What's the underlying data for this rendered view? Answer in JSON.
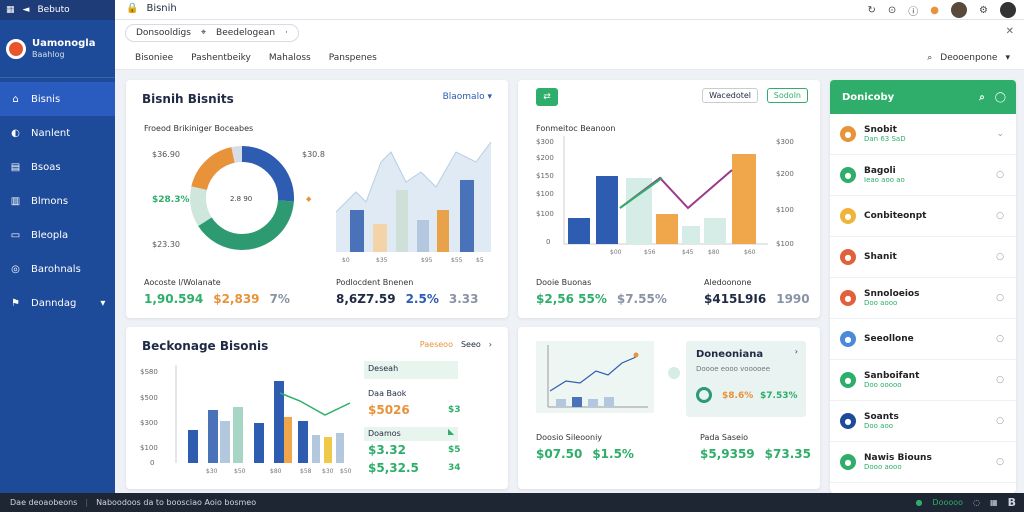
{
  "chrome": {
    "app_name": "Bebuto",
    "url_title": "Bisnih"
  },
  "sidebar": {
    "brand_name": "Uamonogla",
    "brand_sub": "Baahlog",
    "items": [
      {
        "label": "Bisnis",
        "icon": "home-icon"
      },
      {
        "label": "Nanlent",
        "icon": "gauge-icon"
      },
      {
        "label": "Bsoas",
        "icon": "chart-icon"
      },
      {
        "label": "Blmons",
        "icon": "list-icon"
      },
      {
        "label": "Bleopla",
        "icon": "doc-icon"
      },
      {
        "label": "Barohnals",
        "icon": "settings-icon"
      },
      {
        "label": "Danndag",
        "icon": "flag-icon"
      }
    ]
  },
  "topbar": {
    "pill_a": "Donsooldigs",
    "pill_b": "Beedelogean"
  },
  "subnav": {
    "items": [
      "Bisoniee",
      "Pashentbeiky",
      "Mahaloss",
      "Panspenes"
    ],
    "right_label": "Deooenpone"
  },
  "card1": {
    "title": "Bisnih Bisnits",
    "dropdown": "Blaomalo",
    "subtitle": "Froeod Brikiniger Boceabes",
    "donut_labels": [
      "$36.90",
      "$28.3%",
      "$23.30",
      "$30.8"
    ],
    "donut_center": "2.8 90",
    "foot_left_label": "Aocoste l/Wolanate",
    "foot_left_values": [
      "1,90.594",
      "$2,839",
      "7%"
    ],
    "foot_right_label": "Podlocdent Bnenen",
    "foot_right_values": [
      "8,6Z7.59",
      "2.5%",
      "3.33"
    ]
  },
  "card2": {
    "btn_a": "Wacedotel",
    "btn_b": "Sodoln",
    "chart_title": "Fonmeitoc Beanoon",
    "y_left": [
      "$300",
      "$200",
      "$150",
      "$100",
      "$100",
      "0"
    ],
    "y_right": [
      "$300",
      "$200",
      "$100",
      "$100",
      "$300"
    ],
    "x_labels": [
      "$00",
      "$56",
      "$45",
      "$80",
      "$60"
    ],
    "foot_left_label": "Dooie Buonas",
    "foot_left_values": [
      "$2,56 55%",
      "$7.55%"
    ],
    "foot_right_label": "Aledoonone",
    "foot_right_values": [
      "$415L9I6",
      "1990"
    ]
  },
  "card3": {
    "title": "Beckonage Bisonis",
    "link": "Paeseoo",
    "link2": "Seeo",
    "y_labels": [
      "$S80",
      "$500",
      "$300",
      "$100",
      "0"
    ],
    "x_labels": [
      "$30",
      "$50",
      "$80",
      "$58",
      "$30",
      "$50"
    ],
    "side_label1": "Deseah",
    "side_label2": "Daa Baok",
    "side_val1": "$5026",
    "side_val1b": "$3",
    "side_label3": "Doamos",
    "side_val2": "$3.32",
    "side_val2b": "$5",
    "side_val3": "$5,32.5",
    "side_val3b": "34"
  },
  "card4": {
    "kpi_title": "Doneoniana",
    "kpi_sub": "Doooe eooo vooooee",
    "kpi_values": [
      "$8.6%",
      "$7.53%"
    ],
    "foot_left_label": "Doosio Sileooniy",
    "foot_left_values": [
      "$07.50",
      "$1.5%"
    ],
    "foot_right_label": "Pada Saseio",
    "foot_right_values": [
      "$5,9359",
      "$73.35"
    ]
  },
  "right_panel": {
    "title": "Donicoby",
    "items": [
      {
        "label": "Snobit",
        "sub": "Dan 63 SaD",
        "color": "#e8923a"
      },
      {
        "label": "Bagoli",
        "sub": "Ieao aoo ao",
        "color": "#2eae6a"
      },
      {
        "label": "Conbiteonpt",
        "sub": "",
        "color": "#f0b43c"
      },
      {
        "label": "Shanit",
        "sub": "",
        "color": "#e2603a"
      },
      {
        "label": "Snnoloeios",
        "sub": "Doo aooo",
        "color": "#e2603a"
      },
      {
        "label": "Seeollone",
        "sub": "",
        "color": "#4a8ad8"
      },
      {
        "label": "Sanboifant",
        "sub": "Doo ooooo",
        "color": "#2eae6a"
      },
      {
        "label": "Soants",
        "sub": "Doo aoo",
        "color": "#1e4a9a"
      },
      {
        "label": "Nawis Biouns",
        "sub": "Dooo aooo",
        "color": "#2eae6a"
      }
    ]
  },
  "status": {
    "left": "Dae deoaobeons",
    "mid": "Naboodoos da to boosciao  Aoio bosmeo",
    "right": "Dooooo"
  },
  "colors": {
    "sidebar": "#1e4a9a",
    "green": "#2eae6a",
    "orange": "#e8923a",
    "blue": "#2d5cb0"
  }
}
